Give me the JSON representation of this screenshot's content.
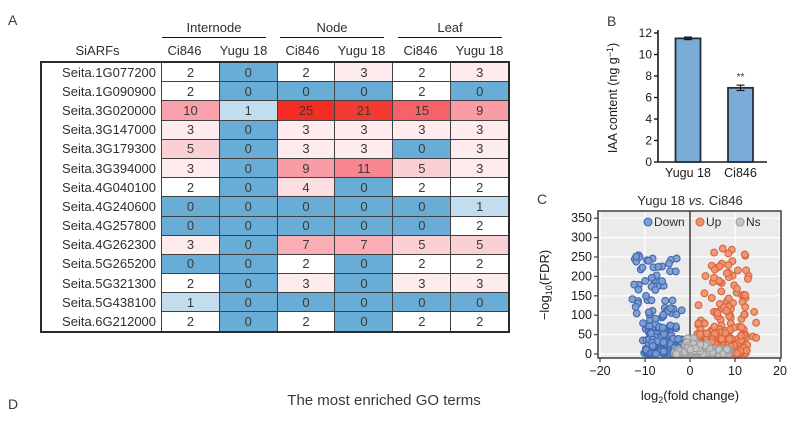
{
  "panel_a": {
    "label": "A"
  },
  "panel_b": {
    "label": "B"
  },
  "panel_c": {
    "label": "C"
  },
  "panel_d": {
    "label": "D",
    "title": "The most enriched GO terms"
  },
  "heatmap": {
    "corner_label": "SiARFs",
    "groups": [
      "Internode",
      "Node",
      "Leaf"
    ],
    "col_labels": [
      "Ci846",
      "Yugu 18",
      "Ci846",
      "Yugu 18",
      "Ci846",
      "Yugu 18"
    ],
    "rows": [
      {
        "gene": "Seita.1G077200",
        "values": [
          2,
          0,
          2,
          3,
          2,
          3
        ]
      },
      {
        "gene": "Seita.1G090900",
        "values": [
          2,
          0,
          0,
          0,
          2,
          0
        ]
      },
      {
        "gene": "Seita.3G020000",
        "values": [
          10,
          1,
          25,
          21,
          15,
          9
        ]
      },
      {
        "gene": "Seita.3G147000",
        "values": [
          3,
          0,
          3,
          3,
          3,
          3
        ]
      },
      {
        "gene": "Seita.3G179300",
        "values": [
          5,
          0,
          3,
          3,
          0,
          3
        ]
      },
      {
        "gene": "Seita.3G394000",
        "values": [
          3,
          0,
          9,
          11,
          5,
          3
        ]
      },
      {
        "gene": "Seita.4G040100",
        "values": [
          2,
          0,
          4,
          0,
          2,
          2
        ]
      },
      {
        "gene": "Seita.4G240600",
        "values": [
          0,
          0,
          0,
          0,
          0,
          1
        ]
      },
      {
        "gene": "Seita.4G257800",
        "values": [
          0,
          0,
          0,
          0,
          0,
          2
        ]
      },
      {
        "gene": "Seita.4G262300",
        "values": [
          3,
          0,
          7,
          7,
          5,
          5
        ]
      },
      {
        "gene": "Seita.5G265200",
        "values": [
          0,
          0,
          2,
          0,
          2,
          2
        ]
      },
      {
        "gene": "Seita.5G321300",
        "values": [
          2,
          0,
          3,
          0,
          3,
          3
        ]
      },
      {
        "gene": "Seita.5G438100",
        "values": [
          1,
          0,
          0,
          0,
          0,
          0
        ]
      },
      {
        "gene": "Seita.6G212000",
        "values": [
          2,
          0,
          2,
          0,
          2,
          2
        ]
      }
    ],
    "value_colors": {
      "0": "#69ACD5",
      "1": "#C2DDEE",
      "2": "#FFFFFF",
      "3": "#FDEBED",
      "4": "#FCDFE3",
      "5": "#FBD0D5",
      "7": "#F9AEB6",
      "9": "#F99CA5",
      "10": "#F9A1AA",
      "11": "#F8868F",
      "15": "#F7626A",
      "21": "#F43B31",
      "25": "#F42C21"
    }
  },
  "chart_data": [
    {
      "type": "bar",
      "panel": "B",
      "categories": [
        "Yugu 18",
        "Ci846"
      ],
      "values": [
        11.5,
        6.9
      ],
      "errors": [
        0.12,
        0.25
      ],
      "significance": [
        "",
        "**"
      ],
      "ylabel_parts": [
        "IAA content (ng g",
        "−1",
        ")"
      ],
      "ylim": [
        0,
        12
      ],
      "yticks": [
        0,
        2,
        4,
        6,
        8,
        10,
        12
      ],
      "bar_fill": "#7BABD7",
      "bar_stroke": "#23303E",
      "axis_color": "#1a1a1a"
    },
    {
      "type": "scatter",
      "panel": "C",
      "title_parts": [
        "Yugu 18 ",
        "vs.",
        " Ci846"
      ],
      "xlabel_parts": [
        "log",
        "2",
        "(fold change)"
      ],
      "ylabel_parts": [
        "−log",
        "10",
        "(FDR)"
      ],
      "xlim": [
        -20,
        20
      ],
      "ylim": [
        0,
        350
      ],
      "xticks": [
        -20,
        -10,
        0,
        10,
        20
      ],
      "yticks": [
        0,
        50,
        100,
        150,
        200,
        250,
        300,
        350
      ],
      "plot_bg": "#EBEBEB",
      "grid_color": "#FFFFFF",
      "zero_line_color": "#4A4A4A",
      "border_color": "#4A4A4A",
      "legend_position": "top-inside",
      "seed": 42,
      "series": [
        {
          "name": "Down",
          "fill": "#7D9BCE",
          "stroke": "#3E68B0",
          "clusters": [
            [
              100,
              -10.5,
              -1.8,
              2,
              140,
              1.9
            ],
            [
              32,
              -13,
              -2.5,
              130,
              262,
              1
            ],
            [
              5,
              -15.5,
              -9,
              85,
              292,
              1
            ],
            [
              90,
              -10,
              -1.5,
              0,
              55,
              1.5
            ]
          ]
        },
        {
          "name": "Up",
          "fill": "#F0926F",
          "stroke": "#D8653C",
          "clusters": [
            [
              105,
              1.8,
              12.5,
              2,
              150,
              1.9
            ],
            [
              36,
              3,
              13.5,
              140,
              272,
              1
            ],
            [
              95,
              1.5,
              12.8,
              0,
              55,
              1.5
            ],
            [
              4,
              13.5,
              15.5,
              40,
              120,
              1
            ]
          ]
        },
        {
          "name": "Ns",
          "fill": "#C6C6C6",
          "stroke": "#9D9D9D",
          "clusters": [
            [
              110,
              -4,
              9,
              0,
              14,
              1.6
            ],
            [
              25,
              -2,
              4.5,
              5,
              45,
              1.3
            ]
          ]
        }
      ]
    }
  ]
}
